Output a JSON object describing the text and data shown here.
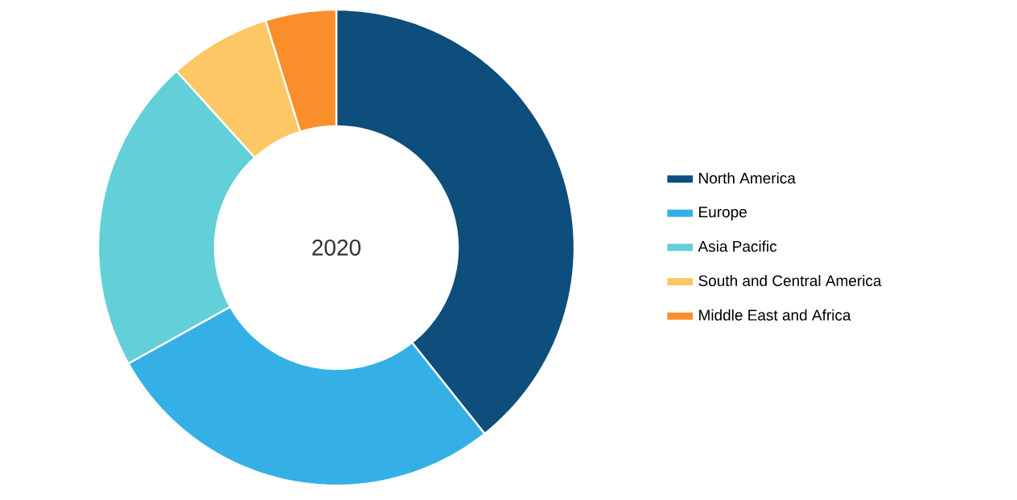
{
  "chart_data": {
    "type": "donut",
    "categories": [
      "North America",
      "Europe",
      "Asia Pacific",
      "South and Central America",
      "Middle East and Africa"
    ],
    "values": [
      39.3,
      27.6,
      21.4,
      6.9,
      4.8
    ],
    "colors": [
      "#0d4e7c",
      "#35b0e6",
      "#63cfd8",
      "#fdc765",
      "#f98e2b"
    ],
    "annotations": [
      "2020"
    ],
    "legend": "right"
  }
}
